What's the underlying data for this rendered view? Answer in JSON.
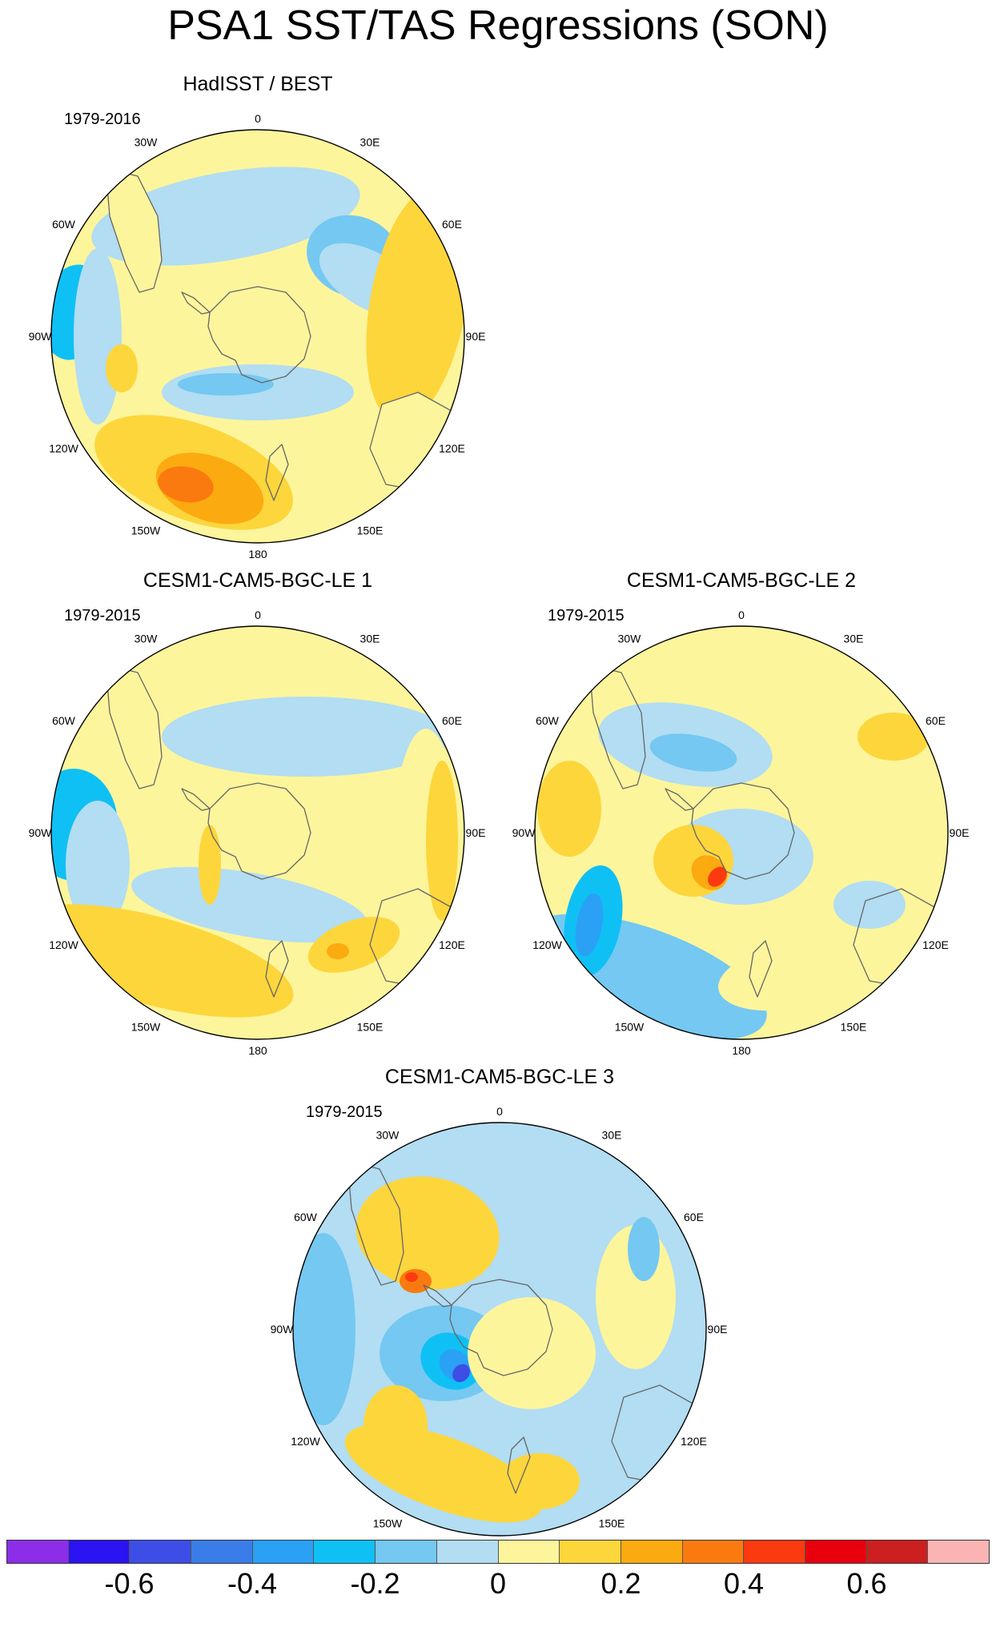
{
  "title": "PSA1 SST/TAS Regressions (SON)",
  "panels": [
    {
      "id": "p1",
      "title": "HadISST / BEST",
      "period": "1979-2016"
    },
    {
      "id": "p2",
      "title": "CESM1-CAM5-BGC-LE 1",
      "period": "1979-2015"
    },
    {
      "id": "p3",
      "title": "CESM1-CAM5-BGC-LE 2",
      "period": "1979-2015"
    },
    {
      "id": "p4",
      "title": "CESM1-CAM5-BGC-LE 3",
      "period": "1979-2015"
    }
  ],
  "lon_labels": [
    "0",
    "30E",
    "60E",
    "90E",
    "120E",
    "150E",
    "180",
    "150W",
    "120W",
    "90W",
    "60W",
    "30W"
  ],
  "colorbar": {
    "colors": [
      "#8c2ee8",
      "#2b13f2",
      "#3d4ee6",
      "#3a7de8",
      "#2aa1f5",
      "#0fc0f5",
      "#74c8f2",
      "#b2ddf2",
      "#fdf59c",
      "#fdd63c",
      "#fbaa10",
      "#fb7a10",
      "#fb3a10",
      "#e8000c",
      "#cc1f1f",
      "#fab4b4"
    ],
    "tick_labels": [
      "-0.6",
      "-0.4",
      "-0.2",
      "0",
      "0.2",
      "0.4",
      "0.6"
    ]
  }
}
